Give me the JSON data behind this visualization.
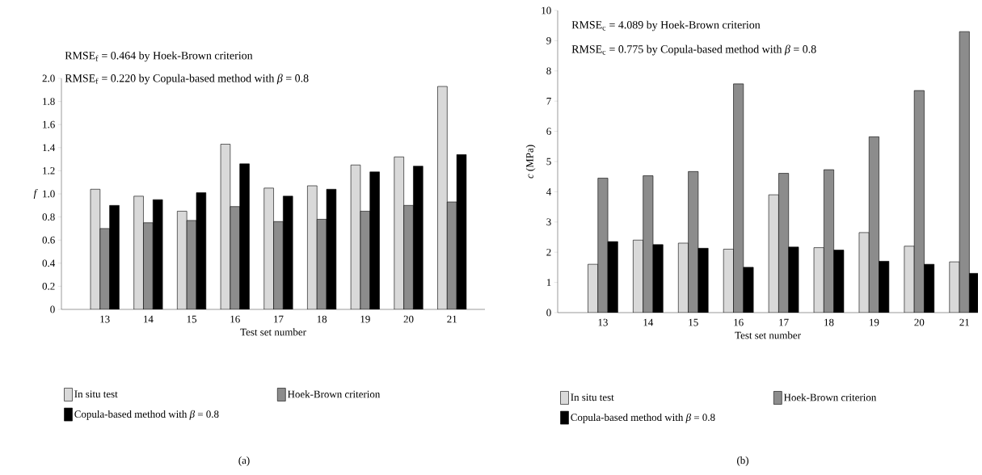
{
  "chart_data": [
    {
      "type": "bar",
      "categories": [
        "13",
        "14",
        "15",
        "16",
        "17",
        "18",
        "19",
        "20",
        "21"
      ],
      "xlabel": "Test set number",
      "ylabel": "f",
      "series": [
        {
          "name": "In situ test",
          "color": "#d9d9d9",
          "values": [
            1.04,
            0.98,
            0.85,
            1.43,
            1.05,
            1.07,
            1.25,
            1.32,
            1.93
          ]
        },
        {
          "name": "Hoek-Brown criterion",
          "color": "#8c8c8c",
          "values": [
            0.7,
            0.75,
            0.77,
            0.89,
            0.76,
            0.78,
            0.85,
            0.9,
            0.93
          ]
        },
        {
          "name": "Copula-based method with *β* = 0.8",
          "color": "#000000",
          "values": [
            0.9,
            0.95,
            1.01,
            1.26,
            0.98,
            1.04,
            1.19,
            1.24,
            1.34
          ]
        }
      ],
      "ylim": [
        0,
        2
      ],
      "yticks": [
        0,
        0.2,
        0.4,
        0.6,
        0.8,
        {
          "value": 1,
          "label": "1.0"
        },
        1.2,
        1.4,
        1.6,
        1.8,
        {
          "value": 2,
          "label": "2.0"
        }
      ],
      "legend": "bottom",
      "annotations": [
        "RMSE$_{f}$ = 0.464 by Hoek-Brown criterion",
        "RMSE$_{f}$ = 0.220 by Copula-based method with *β* = 0.8",
        "(a)"
      ]
    },
    {
      "type": "bar",
      "categories": [
        "13",
        "14",
        "15",
        "16",
        "17",
        "18",
        "19",
        "20",
        "21"
      ],
      "xlabel": "Test set number",
      "ylabel": "*c* (MPa)",
      "series": [
        {
          "name": "In situ test",
          "color": "#d9d9d9",
          "values": [
            1.6,
            2.4,
            2.3,
            2.1,
            3.9,
            2.15,
            2.65,
            2.2,
            1.68
          ]
        },
        {
          "name": "Hoek-Brown criterion",
          "color": "#8c8c8c",
          "values": [
            4.45,
            4.53,
            4.67,
            7.57,
            4.61,
            4.73,
            5.82,
            7.35,
            9.3
          ]
        },
        {
          "name": "Copula-based method with *β* = 0.8",
          "color": "#000000",
          "values": [
            2.35,
            2.25,
            2.13,
            1.5,
            2.17,
            2.07,
            1.7,
            1.6,
            1.3
          ]
        }
      ],
      "ylim": [
        0,
        10
      ],
      "yticks": [
        0,
        1,
        2,
        3,
        4,
        5,
        6,
        7,
        8,
        9,
        10
      ],
      "legend": "bottom",
      "annotations": [
        "RMSE$_{c}$ = 4.089 by Hoek-Brown criterion",
        "RMSE$_{c}$ = 0.775 by Copula-based method with *β* = 0.8",
        "(b)"
      ]
    }
  ]
}
